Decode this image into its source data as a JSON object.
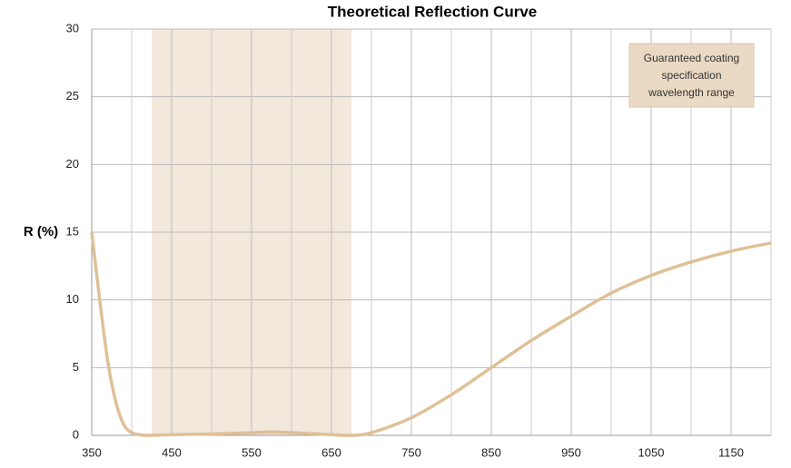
{
  "chart_data": {
    "type": "line",
    "title": "Theoretical Reflection Curve",
    "y_label": "R (%)",
    "x": [
      350,
      360,
      370,
      380,
      390,
      400,
      410,
      420,
      450,
      500,
      550,
      575,
      600,
      650,
      675,
      700,
      750,
      800,
      850,
      900,
      950,
      1000,
      1050,
      1100,
      1150,
      1200
    ],
    "series": [
      {
        "name": "R",
        "color": "#dfc097",
        "values": [
          15,
          10,
          5.5,
          2.5,
          0.8,
          0.2,
          0.05,
          0,
          0.05,
          0.1,
          0.2,
          0.25,
          0.2,
          0.05,
          0,
          0.2,
          1.3,
          3,
          5,
          7,
          8.8,
          10.5,
          11.8,
          12.8,
          13.6,
          14.2
        ]
      }
    ],
    "xlim": [
      350,
      1200
    ],
    "xticks": [
      350,
      450,
      550,
      650,
      750,
      850,
      950,
      1050,
      1150
    ],
    "x_minor_grid": [
      400,
      500,
      600,
      700,
      800,
      900,
      1000,
      1100,
      1200
    ],
    "ylim": [
      0,
      30
    ],
    "yticks": [
      0,
      5,
      10,
      15,
      20,
      25,
      30
    ],
    "grid": true,
    "band": {
      "range": [
        425,
        675
      ],
      "color": "#f3e8dc",
      "label_lines": [
        "Guaranteed coating",
        "specification",
        "wavelength range"
      ],
      "label_color": "#ead9c3"
    }
  }
}
